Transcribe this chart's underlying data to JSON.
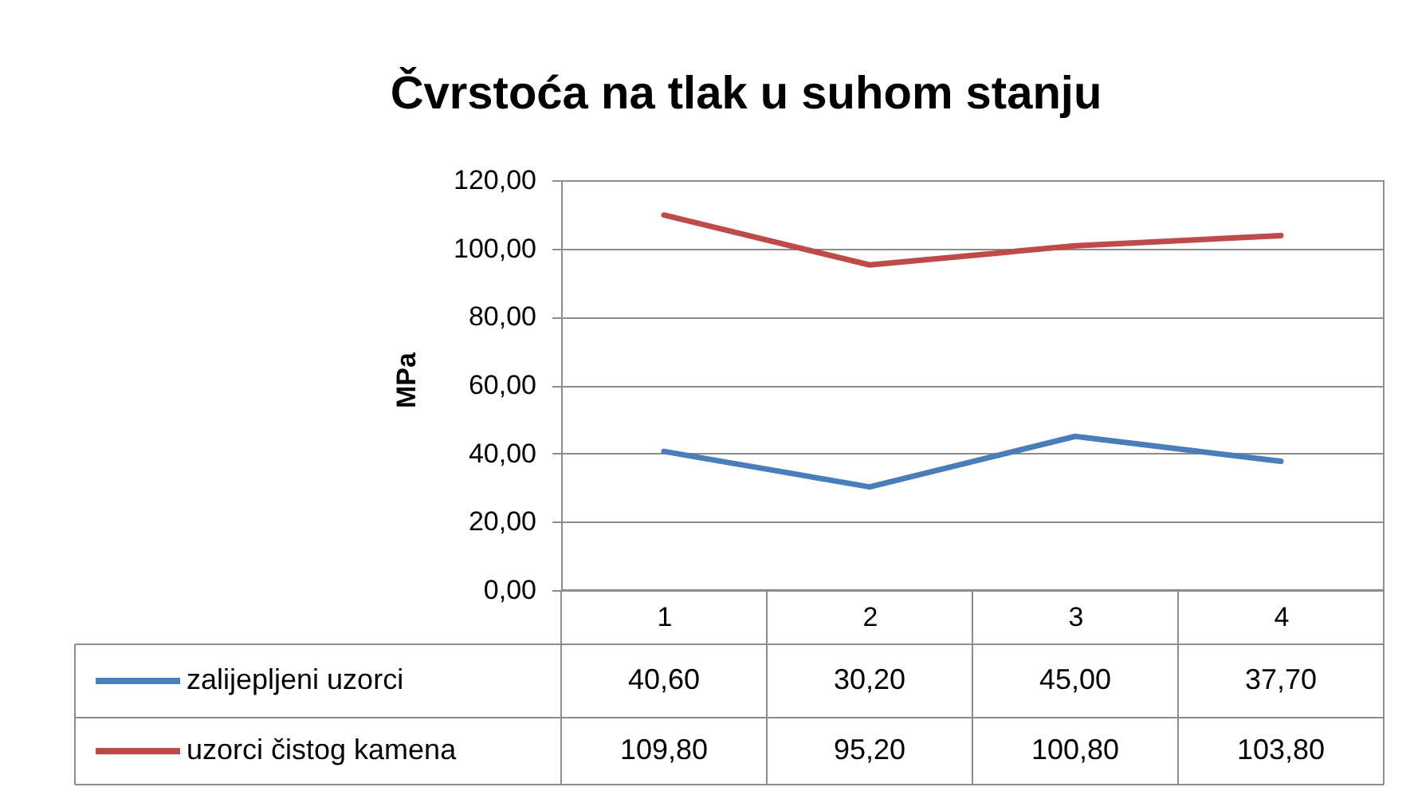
{
  "chart_data": {
    "type": "line",
    "title": "Čvrstoća na tlak u suhom stanju",
    "ylabel": "MPa",
    "categories": [
      "1",
      "2",
      "3",
      "4"
    ],
    "series": [
      {
        "name": "zalijepljeni uzorci",
        "color": "#4a7ebb",
        "values": [
          40.6,
          30.2,
          45.0,
          37.7
        ],
        "value_labels": [
          "40,60",
          "30,20",
          "45,00",
          "37,70"
        ]
      },
      {
        "name": "uzorci čistog kamena",
        "color": "#be4b48",
        "values": [
          109.8,
          95.2,
          100.8,
          103.8
        ],
        "value_labels": [
          "109,80",
          "95,20",
          "100,80",
          "103,80"
        ]
      }
    ],
    "ylim": [
      0,
      120
    ],
    "yticks": [
      {
        "value": 0,
        "label": "0,00"
      },
      {
        "value": 20,
        "label": "20,00"
      },
      {
        "value": 40,
        "label": "40,00"
      },
      {
        "value": 60,
        "label": "60,00"
      },
      {
        "value": 80,
        "label": "80,00"
      },
      {
        "value": 100,
        "label": "100,00"
      },
      {
        "value": 120,
        "label": "120,00"
      }
    ],
    "grid": "y",
    "legend": "bottom",
    "marker": "none",
    "line_style": "solid"
  }
}
